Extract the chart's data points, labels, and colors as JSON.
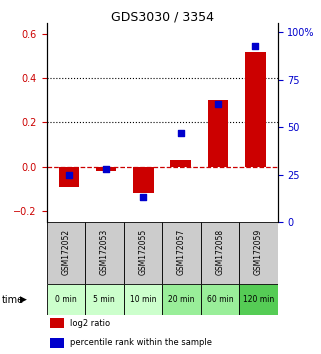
{
  "title": "GDS3030 / 3354",
  "samples": [
    "GSM172052",
    "GSM172053",
    "GSM172055",
    "GSM172057",
    "GSM172058",
    "GSM172059"
  ],
  "timepoints": [
    "0 min",
    "5 min",
    "10 min",
    "20 min",
    "60 min",
    "120 min"
  ],
  "log2_ratio": [
    -0.09,
    -0.02,
    -0.12,
    0.03,
    0.3,
    0.52
  ],
  "percentile_rank": [
    25,
    28,
    13,
    47,
    62,
    93
  ],
  "bar_color": "#cc0000",
  "dot_color": "#0000cc",
  "ylim_left": [
    -0.25,
    0.65
  ],
  "ylim_right": [
    0,
    105
  ],
  "yticks_left": [
    -0.2,
    0.0,
    0.2,
    0.4,
    0.6
  ],
  "yticks_right": [
    0,
    25,
    50,
    75,
    100
  ],
  "ytick_labels_right": [
    "0",
    "25",
    "50",
    "75",
    "100%"
  ],
  "hline_y": 0.0,
  "dotted_lines": [
    0.2,
    0.4
  ],
  "gsm_bg_color": "#cccccc",
  "time_bg_colors": [
    "#ccffcc",
    "#ccffcc",
    "#ccffcc",
    "#99ee99",
    "#99ee99",
    "#55cc55"
  ],
  "legend_items": [
    {
      "label": "log2 ratio",
      "color": "#cc0000"
    },
    {
      "label": "percentile rank within the sample",
      "color": "#0000cc"
    }
  ],
  "bar_width": 0.55
}
